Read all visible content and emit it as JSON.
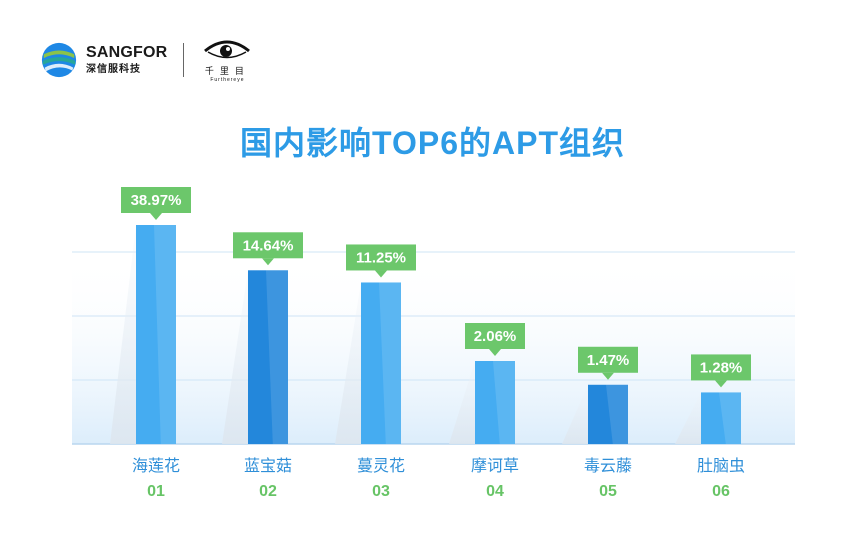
{
  "brand": {
    "sangfor_name": "SANGFOR",
    "sangfor_sub": "深信服科技",
    "partner_cn": "千里目",
    "partner_en": "Furthereye"
  },
  "colors": {
    "title": "#2d9be6",
    "bar_light": "#45acf1",
    "bar_dark": "#2387db",
    "label_bg": "#6cc76b",
    "category_text": "#2f8fd8",
    "index_text": "#67c466"
  },
  "chart_data": {
    "type": "bar",
    "title": "国内影响TOP6的APT组织",
    "categories": [
      "海莲花",
      "蓝宝菇",
      "蔓灵花",
      "摩诃草",
      "毒云藤",
      "肚脑虫"
    ],
    "indices": [
      "01",
      "02",
      "03",
      "04",
      "05",
      "06"
    ],
    "values": [
      38.97,
      14.64,
      11.25,
      2.06,
      1.47,
      1.28
    ],
    "data_labels": [
      "38.97%",
      "14.64%",
      "11.25%",
      "2.06%",
      "1.47%",
      "1.28%"
    ],
    "xlabel": "",
    "ylabel": "",
    "scale": "broken",
    "grid": true,
    "legend": "none"
  }
}
